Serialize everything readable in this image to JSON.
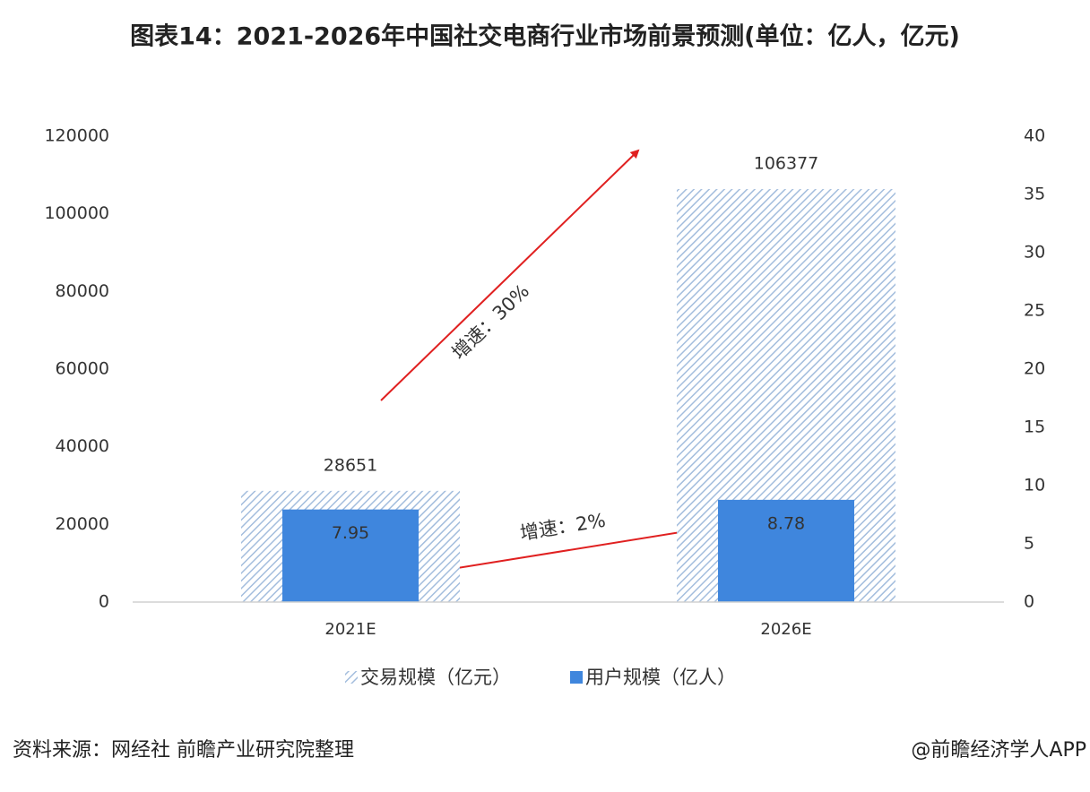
{
  "chart_data": {
    "type": "bar",
    "title": "图表14：2021-2026年中国社交电商行业市场前景预测(单位：亿人，亿元)",
    "categories": [
      "2021E",
      "2026E"
    ],
    "series": [
      {
        "name": "交易规模（亿元）",
        "color": "#a3bddd",
        "values": [
          28651,
          106377
        ]
      },
      {
        "name": "用户规模（亿人）",
        "color": "#3f86dd",
        "values": [
          7.95,
          8.78
        ],
        "axis": "y2"
      }
    ],
    "ylim": [
      0,
      120000
    ],
    "yticks": [
      0,
      20000,
      40000,
      60000,
      80000,
      100000,
      120000
    ],
    "y2lim": [
      0,
      40
    ],
    "y2ticks": [
      0,
      5,
      10,
      15,
      20,
      25,
      30,
      35,
      40
    ],
    "annotations": [
      "增速：30%",
      "增速：2%"
    ],
    "source": "资料来源：网经社 前瞻产业研究院整理",
    "credit": "@前瞻经济学人APP"
  }
}
